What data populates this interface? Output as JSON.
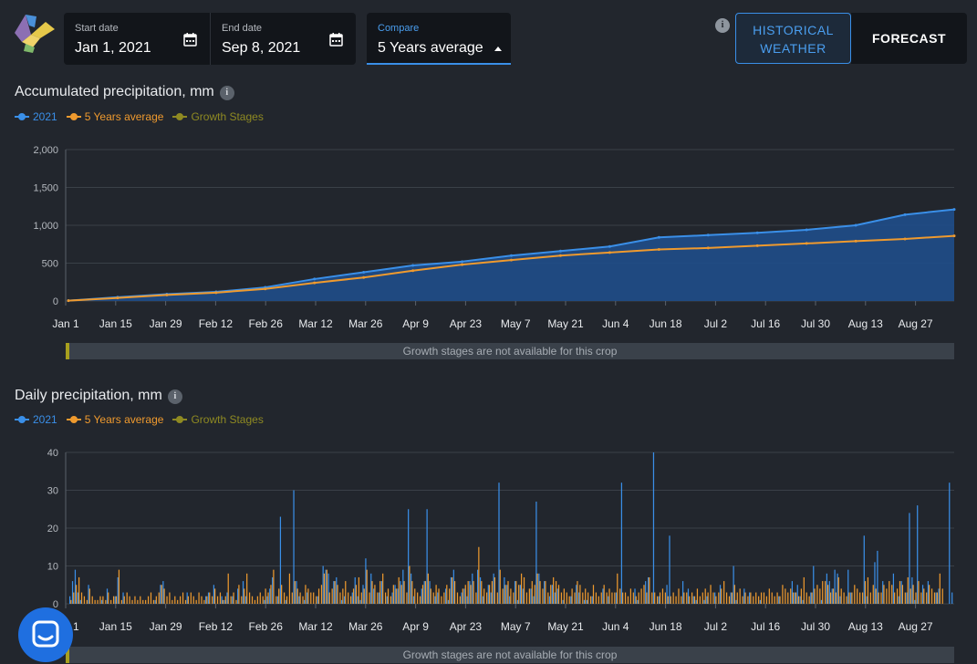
{
  "header": {
    "start_date": {
      "label": "Start date",
      "value": "Jan 1, 2021"
    },
    "end_date": {
      "label": "End date",
      "value": "Sep 8, 2021"
    },
    "compare": {
      "label": "Compare",
      "value": "5 Years average"
    },
    "info_text": "i",
    "historical_button": {
      "line1": "HISTORICAL",
      "line2": "WEATHER"
    },
    "forecast_button": "FORECAST"
  },
  "colors": {
    "series_2021": "#3a8fe8",
    "series_avg": "#ef9a2e",
    "growth": "#8f8a22",
    "accent": "#3a8fe8"
  },
  "legend": [
    "2021",
    "5 Years average",
    "Growth Stages"
  ],
  "stage_text": "Growth stages are not available for this crop",
  "x_ticks": [
    "Jan 1",
    "Jan 15",
    "Jan 29",
    "Feb 12",
    "Feb 26",
    "Mar 12",
    "Mar 26",
    "Apr 9",
    "Apr 23",
    "May 7",
    "May 21",
    "Jun 4",
    "Jun 18",
    "Jul 2",
    "Jul 16",
    "Jul 30",
    "Aug 13",
    "Aug 27"
  ],
  "chat_icon": "chat-bubble-icon",
  "chart_data": [
    {
      "type": "area",
      "title": "Accumulated precipitation, mm",
      "ylim": [
        0,
        2000
      ],
      "yticks": [
        0,
        500,
        1000,
        1500,
        2000
      ],
      "legend_position": "top-left",
      "grid": true,
      "x": [
        "Jan 1",
        "Jan 15",
        "Jan 29",
        "Feb 12",
        "Feb 26",
        "Mar 12",
        "Mar 26",
        "Apr 9",
        "Apr 23",
        "May 7",
        "May 21",
        "Jun 4",
        "Jun 18",
        "Jul 2",
        "Jul 16",
        "Jul 30",
        "Aug 13",
        "Aug 27",
        "Sep 8"
      ],
      "series": [
        {
          "name": "2021",
          "values": [
            5,
            50,
            90,
            120,
            180,
            290,
            380,
            470,
            520,
            600,
            660,
            720,
            840,
            870,
            900,
            940,
            1000,
            1140,
            1210
          ]
        },
        {
          "name": "5 Years average",
          "values": [
            5,
            40,
            80,
            110,
            160,
            240,
            310,
            400,
            480,
            540,
            600,
            640,
            680,
            700,
            730,
            760,
            790,
            820,
            860
          ]
        }
      ]
    },
    {
      "type": "bar",
      "title": "Daily precipitation, mm",
      "ylim": [
        0,
        40
      ],
      "yticks": [
        0,
        10,
        20,
        30,
        40
      ],
      "legend_position": "top-left",
      "grid": true,
      "x_range": [
        "Jan 1",
        "Sep 8"
      ],
      "series": [
        {
          "name": "2021",
          "values": [
            2,
            6,
            9,
            3,
            1,
            0,
            0,
            5,
            0,
            0,
            0,
            0,
            1,
            0,
            4,
            0,
            0,
            2,
            7,
            0,
            3,
            0,
            0,
            0,
            0,
            0,
            0,
            0,
            0,
            0,
            0,
            0,
            1,
            0,
            5,
            6,
            0,
            0,
            0,
            0,
            0,
            0,
            0,
            0,
            3,
            0,
            0,
            0,
            0,
            0,
            0,
            2,
            3,
            0,
            5,
            0,
            0,
            2,
            1,
            3,
            0,
            2,
            0,
            4,
            0,
            6,
            2,
            0,
            0,
            0,
            0,
            0,
            0,
            1,
            2,
            4,
            7,
            0,
            2,
            23,
            0,
            1,
            0,
            0,
            30,
            6,
            2,
            0,
            1,
            3,
            0,
            0,
            0,
            2,
            0,
            10,
            9,
            8,
            0,
            6,
            7,
            0,
            1,
            2,
            0,
            0,
            3,
            7,
            2,
            1,
            5,
            12,
            0,
            8,
            4,
            0,
            3,
            6,
            0,
            2,
            0,
            3,
            5,
            4,
            6,
            9,
            0,
            25,
            8,
            2,
            0,
            0,
            4,
            6,
            25,
            6,
            0,
            2,
            3,
            0,
            0,
            4,
            1,
            7,
            9,
            0,
            0,
            3,
            4,
            2,
            6,
            8,
            0,
            9,
            7,
            2,
            0,
            5,
            3,
            8,
            0,
            32,
            0,
            7,
            5,
            2,
            0,
            6,
            1,
            5,
            4,
            0,
            0,
            4,
            2,
            27,
            8,
            0,
            6,
            0,
            2,
            5,
            3,
            4,
            0,
            1,
            0,
            0,
            2,
            0,
            5,
            3,
            0,
            1,
            1,
            0,
            2,
            0,
            0,
            0,
            4,
            0,
            2,
            0,
            0,
            3,
            0,
            32,
            0,
            0,
            0,
            0,
            4,
            1,
            0,
            0,
            6,
            7,
            0,
            40,
            0,
            2,
            0,
            0,
            5,
            18,
            0,
            0,
            0,
            0,
            6,
            0,
            4,
            0,
            2,
            1,
            0,
            0,
            1,
            2,
            0,
            0,
            3,
            0,
            5,
            0,
            0,
            0,
            3,
            10,
            1,
            0,
            0,
            4,
            0,
            3,
            0,
            0,
            0,
            1,
            0,
            0,
            0,
            0,
            0,
            0,
            2,
            0,
            0,
            0,
            0,
            6,
            3,
            5,
            2,
            1,
            0,
            0,
            3,
            10,
            0,
            0,
            1,
            0,
            8,
            6,
            4,
            9,
            8,
            2,
            0,
            0,
            9,
            3,
            0,
            0,
            0,
            0,
            18,
            2,
            0,
            0,
            11,
            14,
            0,
            6,
            0,
            0,
            0,
            8,
            0,
            2,
            6,
            0,
            3,
            24,
            7,
            1,
            26,
            0,
            5,
            0,
            6,
            0,
            0,
            3,
            4,
            0,
            0,
            0,
            32,
            3
          ]
        },
        {
          "name": "5 Years average",
          "values": [
            1,
            3,
            5,
            7,
            3,
            2,
            1,
            4,
            2,
            1,
            1,
            2,
            2,
            1,
            3,
            1,
            2,
            2,
            9,
            1,
            2,
            3,
            2,
            1,
            2,
            1,
            2,
            1,
            1,
            2,
            3,
            1,
            2,
            3,
            5,
            4,
            2,
            3,
            1,
            2,
            1,
            2,
            3,
            1,
            2,
            3,
            2,
            1,
            3,
            2,
            1,
            2,
            3,
            2,
            4,
            2,
            3,
            1,
            2,
            8,
            2,
            3,
            1,
            5,
            2,
            4,
            8,
            3,
            2,
            1,
            2,
            3,
            2,
            4,
            3,
            5,
            9,
            2,
            4,
            5,
            3,
            2,
            8,
            3,
            6,
            4,
            3,
            2,
            5,
            4,
            3,
            3,
            2,
            4,
            5,
            8,
            9,
            3,
            4,
            6,
            5,
            3,
            4,
            6,
            3,
            2,
            4,
            5,
            7,
            3,
            4,
            9,
            3,
            6,
            5,
            3,
            6,
            8,
            3,
            4,
            2,
            5,
            4,
            7,
            5,
            6,
            3,
            10,
            6,
            4,
            3,
            2,
            5,
            6,
            8,
            4,
            3,
            5,
            4,
            2,
            3,
            5,
            4,
            7,
            6,
            3,
            2,
            4,
            5,
            6,
            5,
            6,
            3,
            15,
            6,
            4,
            3,
            5,
            6,
            7,
            3,
            9,
            4,
            5,
            6,
            4,
            3,
            6,
            5,
            8,
            7,
            3,
            4,
            6,
            5,
            8,
            6,
            4,
            6,
            3,
            5,
            7,
            6,
            5,
            3,
            4,
            3,
            2,
            4,
            3,
            6,
            5,
            3,
            4,
            3,
            2,
            5,
            3,
            2,
            3,
            5,
            3,
            4,
            3,
            3,
            8,
            4,
            3,
            3,
            2,
            4,
            3,
            2,
            3,
            4,
            5,
            3,
            7,
            3,
            3,
            2,
            3,
            4,
            3,
            2,
            2,
            3,
            2,
            4,
            2,
            3,
            3,
            2,
            3,
            2,
            4,
            2,
            3,
            4,
            3,
            5,
            3,
            2,
            3,
            4,
            6,
            3,
            2,
            3,
            5,
            3,
            4,
            2,
            3,
            2,
            3,
            2,
            3,
            2,
            3,
            3,
            2,
            4,
            3,
            2,
            3,
            2,
            5,
            4,
            3,
            4,
            3,
            3,
            2,
            4,
            7,
            3,
            2,
            3,
            4,
            5,
            4,
            6,
            6,
            5,
            3,
            4,
            3,
            7,
            4,
            3,
            2,
            3,
            3,
            5,
            4,
            3,
            3,
            6,
            7,
            3,
            5,
            4,
            3,
            3,
            5,
            4,
            6,
            5,
            3,
            4,
            6,
            5,
            3,
            7,
            4,
            5,
            3,
            6,
            3,
            4,
            3,
            5,
            4,
            3,
            3,
            8,
            4
          ]
        }
      ]
    }
  ]
}
